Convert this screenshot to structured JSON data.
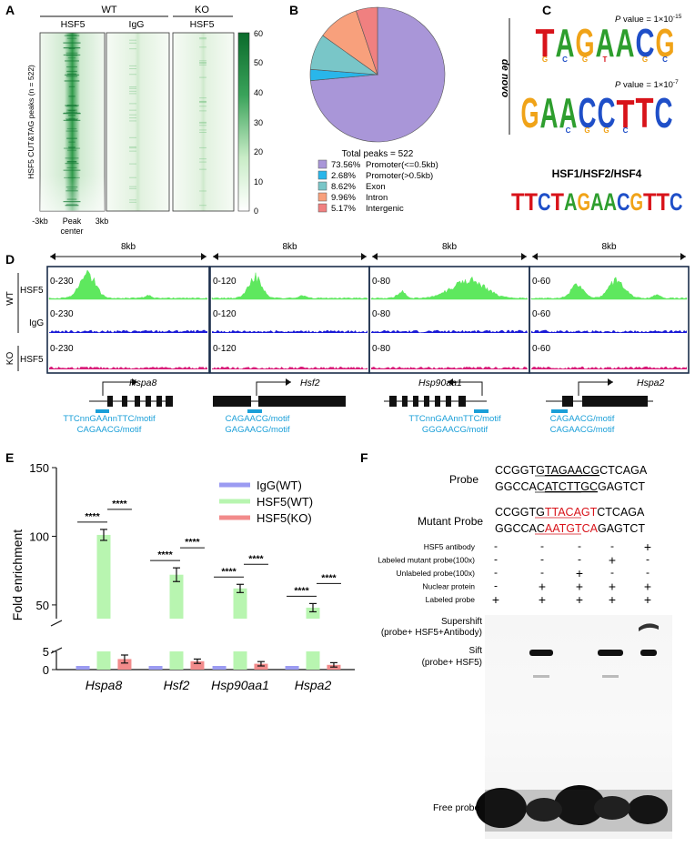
{
  "panel_labels": {
    "a": "A",
    "b": "B",
    "c": "C",
    "d": "D",
    "e": "E",
    "f": "F"
  },
  "panel_a": {
    "groups": [
      "WT",
      "KO"
    ],
    "columns": [
      "HSF5",
      "IgG",
      "HSF5"
    ],
    "ylabel": "HSF5 CUT&TAG peaks (n = 522)",
    "x_left": "-3kb",
    "x_center_1": "Peak",
    "x_center_2": "center",
    "x_right": "3kb",
    "colorbar_ticks": [
      "60",
      "50",
      "40",
      "30",
      "20",
      "10",
      "0"
    ],
    "colors": {
      "high": "#0b6b2c",
      "low": "#ffffff"
    }
  },
  "chart_data": [
    {
      "type": "pie",
      "title": "Total peaks = 522",
      "slices": [
        {
          "label": "Promoter(<=0.5kb)",
          "percent_text": "73.56%",
          "value": 73.56,
          "color": "#a996d8"
        },
        {
          "label": "Promoter(>0.5kb)",
          "percent_text": "2.68%",
          "value": 2.68,
          "color": "#29b6ea"
        },
        {
          "label": "Exon",
          "percent_text": "8.62%",
          "value": 8.62,
          "color": "#79c6c8"
        },
        {
          "label": "Intron",
          "percent_text": "9.96%",
          "value": 9.96,
          "color": "#f8a07c"
        },
        {
          "label": "Intergenic",
          "percent_text": "5.17%",
          "value": 5.17,
          "color": "#f08080"
        }
      ]
    },
    {
      "type": "bar",
      "ylabel": "Fold enrichment",
      "categories": [
        "Hspa8",
        "Hsf2",
        "Hsp90aa1",
        "Hspa2"
      ],
      "series": [
        {
          "name": "IgG(WT)",
          "color": "#9b9bf2",
          "values": [
            1,
            1,
            1,
            1
          ]
        },
        {
          "name": "HSF5(WT)",
          "color": "#b8f5b0",
          "values": [
            101,
            72,
            62,
            48
          ]
        },
        {
          "name": "HSF5(KO)",
          "color": "#f28b8b",
          "values": [
            2.9,
            2.3,
            1.6,
            1.3
          ]
        }
      ],
      "errors": [
        [
          0,
          0,
          0,
          0
        ],
        [
          4,
          5,
          3,
          3
        ],
        [
          1.1,
          0.6,
          0.6,
          0.6
        ]
      ],
      "broken_axis": {
        "lower": [
          0,
          5
        ],
        "upper": [
          40,
          150
        ]
      },
      "yticks_upper": [
        "150",
        "100",
        "50"
      ],
      "yticks_lower": [
        "5",
        "0"
      ],
      "significance": "****"
    }
  ],
  "panel_c": {
    "side_label": "de novo",
    "motif1_letters": [
      "T",
      "A",
      "G",
      "A",
      "A",
      "C",
      "G"
    ],
    "motif1_p_prefix": "P",
    "motif1_p": "value = 1×10",
    "motif1_exp": "-15",
    "motif2_letters": [
      "G",
      "A",
      "A",
      "C",
      "C",
      "T",
      "T",
      "C"
    ],
    "motif2_p_prefix": "P",
    "motif2_p": "value = 1×10",
    "motif2_exp": "-7",
    "known_title": "HSF1/HSF2/HSF4",
    "known_letters": [
      "T",
      "T",
      "C",
      "T",
      "A",
      "G",
      "A",
      "A",
      "C",
      "G",
      "T",
      "T",
      "C"
    ],
    "base_colors": {
      "A": "#2e9e2e",
      "C": "#1f4fc8",
      "G": "#f0a318",
      "T": "#d8131a"
    }
  },
  "panel_d": {
    "scale": [
      "8kb",
      "8kb",
      "8kb",
      "8kb"
    ],
    "row_labels": {
      "wt": "WT",
      "ko": "KO",
      "hsf5": "HSF5",
      "igg": "IgG",
      "hsf5_ko": "HSF5"
    },
    "ranges": [
      "0-230",
      "0-120",
      "0-80",
      "0-60"
    ],
    "genes": [
      "Hspa8",
      "Hsf2",
      "Hsp90aa1",
      "Hspa2"
    ],
    "motifs": [
      [
        "TTCnnGAAnnTTC/motif",
        "CAGAACG/motif"
      ],
      [
        "CAGAACG/motif",
        "GAGAACG/motif"
      ],
      [
        "TTCnnGAAnnTTC/motif",
        "GGGAACG/motif"
      ],
      [
        "CAGAACG/motif",
        "CAGAACG/motif"
      ]
    ],
    "colors": {
      "hsf5": "#5ee85e",
      "igg": "#1a1ad6",
      "ko": "#d81b78",
      "motif": "#1a9fd8"
    }
  },
  "panel_f": {
    "probe_label": "Probe",
    "probe_top_pre": "CCGGTG",
    "probe_top_core": "TAGAACG",
    "probe_top_post": "CTCAGA",
    "probe_bot_pre": "GGCCAC",
    "probe_bot_core": "ATCTTGC",
    "probe_bot_post": "GAGTCT",
    "mutant_label": "Mutant Probe",
    "mut_top_pre": "CCGGTG",
    "mut_top_core": "TTACAGT",
    "mut_top_post": "CTCAGA",
    "mut_bot_pre": "GGCCAC",
    "mut_bot_core": "AATGTCA",
    "mut_bot_post": "GAGTCT",
    "rows": [
      {
        "label": "HSF5 antibody",
        "signs": [
          "-",
          "-",
          "-",
          "-",
          "+"
        ]
      },
      {
        "label": "Labeled mutant probe(100x)",
        "signs": [
          "-",
          "-",
          "-",
          "+",
          "-"
        ]
      },
      {
        "label": "Unlabeled probe(100x)",
        "signs": [
          "-",
          "-",
          "+",
          "-",
          "-"
        ]
      },
      {
        "label": "Nuclear protein",
        "signs": [
          "-",
          "+",
          "+",
          "+",
          "+"
        ]
      },
      {
        "label": "Labeled probe",
        "signs": [
          "+",
          "+",
          "+",
          "+",
          "+"
        ]
      }
    ],
    "supershift_1": "Supershift",
    "supershift_2": "(probe+ HSF5+Antibody)",
    "shift_1": "Sift",
    "shift_2": "(probe+ HSF5)",
    "free_probe": "Free probe",
    "mutant_color": "#d8131a"
  }
}
